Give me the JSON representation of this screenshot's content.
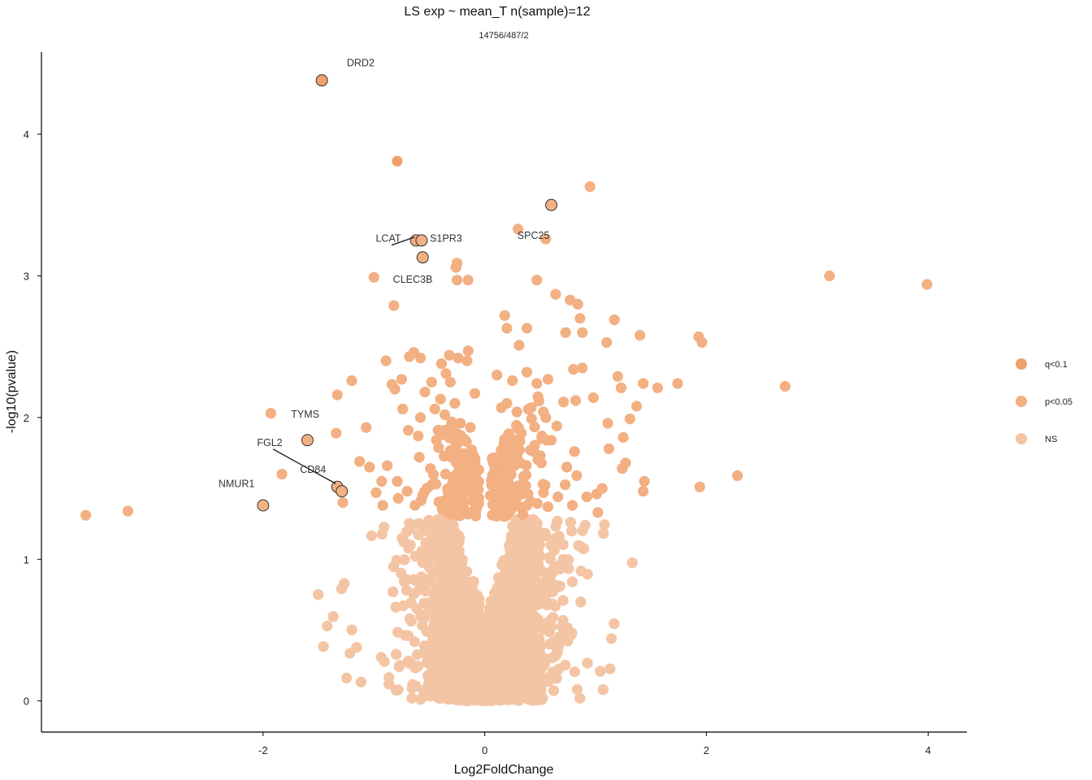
{
  "chart_data": {
    "type": "scatter",
    "title": "LS exp ~ mean_T n(sample)=12",
    "subtitle": "14756/487/2",
    "xlabel": "Log2FoldChange",
    "ylabel": "-log10(pvalue)",
    "xlim": [
      -4.0,
      4.35
    ],
    "ylim": [
      -0.22,
      4.58
    ],
    "x_ticks": [
      -2,
      0,
      2,
      4
    ],
    "y_ticks": [
      0,
      1,
      2,
      3,
      4
    ],
    "grid": false,
    "legend_position": "right",
    "colors": {
      "q<0.1": "#f0a06a",
      "p<0.05": "#f2b083",
      "NS": "#f4c5a5",
      "outline": "#333333"
    },
    "legend": [
      {
        "key": "q<0.1",
        "label": "q<0.1",
        "color": "#f0a06a"
      },
      {
        "key": "p<0.05",
        "label": "p<0.05",
        "color": "#f2b083"
      },
      {
        "key": "NS",
        "label": "NS",
        "color": "#f4c5a5"
      }
    ],
    "sig_threshold": 1.301,
    "n_background_ns_points": 4200,
    "highlighted": [
      {
        "gene": "DRD2",
        "x": -1.47,
        "y": 4.38,
        "label_x": -1.12,
        "label_y": 4.48
      },
      {
        "gene": "LCAT",
        "x": -0.62,
        "y": 3.25,
        "label_x": -0.87,
        "label_y": 3.24,
        "leader": true
      },
      {
        "gene": "S1PR3",
        "x": -0.57,
        "y": 3.25,
        "label_x": -0.35,
        "label_y": 3.24
      },
      {
        "gene": "CLEC3B",
        "x": -0.56,
        "y": 3.13,
        "label_x": -0.65,
        "label_y": 2.95
      },
      {
        "gene": "SPC25",
        "x": 0.6,
        "y": 3.5,
        "label_x": 0.44,
        "label_y": 3.26
      },
      {
        "gene": "TYMS",
        "x": -1.6,
        "y": 1.84,
        "label_x": -1.62,
        "label_y": 2.0
      },
      {
        "gene": "FGL2",
        "x": -1.33,
        "y": 1.51,
        "label_x": -1.94,
        "label_y": 1.8,
        "leader": true
      },
      {
        "gene": "CD84",
        "x": -1.29,
        "y": 1.48,
        "label_x": -1.55,
        "label_y": 1.61
      },
      {
        "gene": "NMUR1",
        "x": -2.0,
        "y": 1.38,
        "label_x": -2.24,
        "label_y": 1.51
      }
    ],
    "q_points": [
      {
        "x": -0.79,
        "y": 3.81
      }
    ],
    "p_points": [
      [
        0.95,
        3.63
      ],
      [
        0.3,
        3.33
      ],
      [
        0.55,
        3.26
      ],
      [
        -0.25,
        3.09
      ],
      [
        -0.26,
        3.06
      ],
      [
        -0.25,
        2.97
      ],
      [
        -0.15,
        2.97
      ],
      [
        -1.0,
        2.99
      ],
      [
        0.47,
        2.97
      ],
      [
        -0.82,
        2.79
      ],
      [
        0.64,
        2.87
      ],
      [
        0.77,
        2.83
      ],
      [
        0.84,
        2.8
      ],
      [
        0.86,
        2.7
      ],
      [
        0.18,
        2.72
      ],
      [
        1.17,
        2.69
      ],
      [
        0.2,
        2.63
      ],
      [
        0.38,
        2.63
      ],
      [
        0.73,
        2.6
      ],
      [
        0.88,
        2.6
      ],
      [
        1.4,
        2.58
      ],
      [
        1.93,
        2.57
      ],
      [
        1.96,
        2.53
      ],
      [
        1.1,
        2.53
      ],
      [
        0.31,
        2.51
      ],
      [
        3.11,
        3.0
      ],
      [
        3.99,
        2.94
      ],
      [
        2.71,
        2.22
      ],
      [
        2.28,
        1.59
      ],
      [
        1.94,
        1.51
      ],
      [
        -3.22,
        1.34
      ],
      [
        -3.6,
        1.31
      ],
      [
        -1.93,
        2.03
      ],
      [
        -1.83,
        1.6
      ],
      [
        -1.2,
        2.26
      ],
      [
        -1.33,
        2.16
      ],
      [
        -1.34,
        1.89
      ],
      [
        -1.07,
        1.93
      ],
      [
        -1.13,
        1.69
      ],
      [
        -1.04,
        1.65
      ],
      [
        -0.93,
        1.55
      ],
      [
        -0.98,
        1.47
      ],
      [
        -1.28,
        1.4
      ],
      [
        -0.75,
        2.27
      ],
      [
        -0.89,
        2.4
      ],
      [
        -0.64,
        2.46
      ],
      [
        -0.68,
        2.43
      ],
      [
        -0.58,
        2.42
      ],
      [
        -0.39,
        2.38
      ],
      [
        -0.32,
        2.44
      ],
      [
        -0.24,
        2.42
      ],
      [
        -0.15,
        2.47
      ],
      [
        -0.16,
        2.4
      ],
      [
        -0.35,
        2.31
      ],
      [
        -0.48,
        2.25
      ],
      [
        -0.54,
        2.18
      ],
      [
        -0.4,
        2.13
      ],
      [
        -0.58,
        2.0
      ],
      [
        -0.74,
        2.06
      ],
      [
        -0.81,
        2.2
      ],
      [
        -0.69,
        1.91
      ],
      [
        -0.59,
        1.72
      ],
      [
        -0.6,
        1.87
      ],
      [
        -0.49,
        1.64
      ],
      [
        -0.38,
        1.88
      ],
      [
        -0.3,
        1.72
      ],
      [
        -0.22,
        1.96
      ],
      [
        -0.26,
        1.81
      ],
      [
        -0.17,
        1.65
      ],
      [
        -0.13,
        1.93
      ],
      [
        -0.09,
        2.17
      ],
      [
        -0.31,
        2.25
      ],
      [
        -0.27,
        2.1
      ],
      [
        -0.36,
        2.02
      ],
      [
        -0.45,
        2.06
      ],
      [
        0.11,
        2.3
      ],
      [
        0.25,
        2.26
      ],
      [
        0.38,
        2.32
      ],
      [
        0.47,
        2.24
      ],
      [
        0.57,
        2.27
      ],
      [
        0.8,
        2.34
      ],
      [
        0.88,
        2.35
      ],
      [
        0.98,
        2.14
      ],
      [
        1.2,
        2.29
      ],
      [
        1.23,
        2.21
      ],
      [
        1.43,
        2.24
      ],
      [
        1.56,
        2.21
      ],
      [
        1.74,
        2.24
      ],
      [
        1.37,
        2.08
      ],
      [
        1.31,
        1.99
      ],
      [
        1.11,
        1.96
      ],
      [
        1.12,
        1.78
      ],
      [
        1.25,
        1.86
      ],
      [
        1.27,
        1.68
      ],
      [
        1.24,
        1.64
      ],
      [
        1.44,
        1.55
      ],
      [
        1.43,
        1.48
      ],
      [
        1.01,
        1.46
      ],
      [
        0.83,
        1.59
      ],
      [
        0.74,
        1.65
      ],
      [
        0.81,
        1.76
      ],
      [
        0.6,
        1.84
      ],
      [
        0.51,
        1.68
      ],
      [
        0.44,
        1.76
      ],
      [
        0.33,
        1.89
      ],
      [
        0.29,
        2.04
      ],
      [
        0.2,
        2.1
      ],
      [
        0.15,
        2.07
      ],
      [
        0.42,
        2.07
      ],
      [
        0.55,
        2.0
      ],
      [
        0.65,
        1.94
      ],
      [
        0.82,
        2.12
      ],
      [
        0.71,
        2.11
      ],
      [
        1.06,
        1.5
      ],
      [
        0.92,
        1.44
      ],
      [
        0.66,
        1.44
      ],
      [
        0.53,
        1.47
      ],
      [
        0.37,
        1.52
      ],
      [
        0.21,
        1.55
      ],
      [
        0.11,
        1.6
      ],
      [
        0.05,
        1.45
      ],
      [
        -0.1,
        1.52
      ],
      [
        -0.19,
        1.57
      ],
      [
        -0.23,
        1.44
      ],
      [
        -0.33,
        1.47
      ],
      [
        -0.44,
        1.53
      ],
      [
        -0.56,
        1.45
      ],
      [
        -0.7,
        1.48
      ],
      [
        -0.79,
        1.55
      ],
      [
        -0.88,
        1.66
      ],
      [
        -0.92,
        1.38
      ],
      [
        -0.78,
        1.43
      ],
      [
        -0.63,
        1.38
      ],
      [
        0.1,
        1.4
      ],
      [
        0.23,
        1.42
      ],
      [
        0.41,
        1.41
      ],
      [
        0.57,
        1.37
      ],
      [
        0.79,
        1.38
      ],
      [
        1.02,
        1.33
      ]
    ]
  }
}
